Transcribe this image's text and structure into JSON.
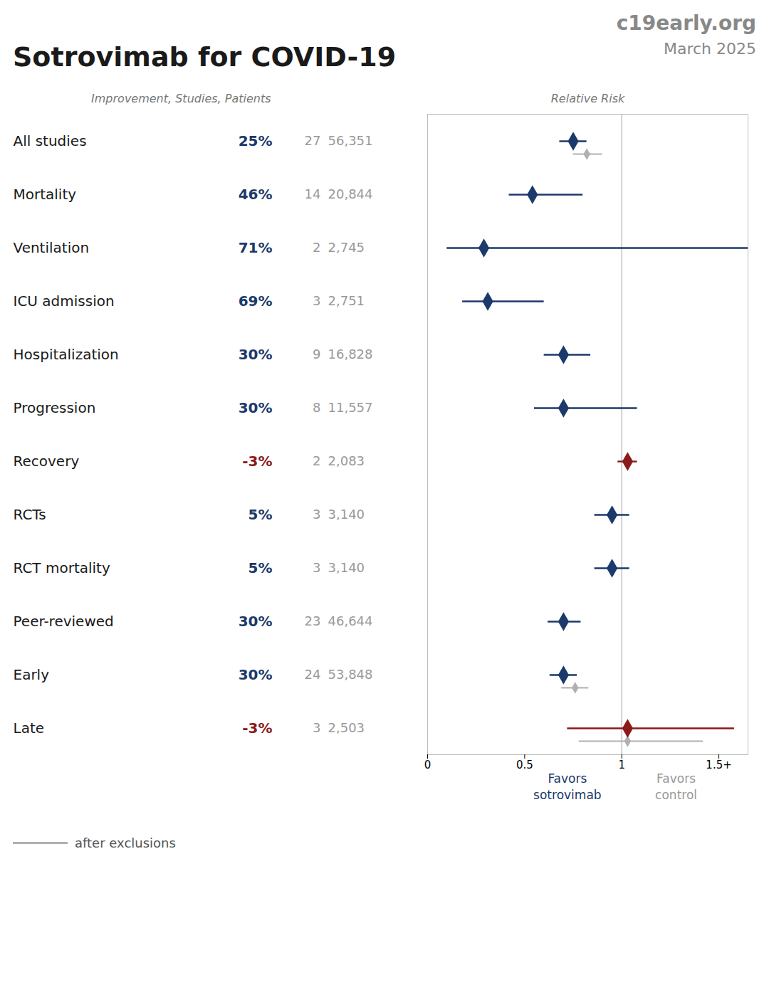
{
  "chart_data": {
    "type": "forest",
    "title": "Sotrovimab for COVID-19",
    "subtitle": [
      "c19early.org",
      "March 2025"
    ],
    "column_headers": [
      "Improvement, Studies, Patients",
      "Relative Risk"
    ],
    "xlim": [
      0.0,
      1.65
    ],
    "xticks": [
      0,
      0.5,
      1,
      {
        "value": 1.5,
        "label": "1.5+"
      }
    ],
    "reference_line": 1.0,
    "rows": [
      {
        "label": "All studies",
        "improvement": "25%",
        "studies": "27",
        "patients": "56,351",
        "point": 0.75,
        "ci_low": 0.68,
        "ci_high": 0.82,
        "color": "#1b3a6b",
        "excl_point": 0.82,
        "excl_ci_low": 0.75,
        "excl_ci_high": 0.9
      },
      {
        "label": "Mortality",
        "improvement": "46%",
        "studies": "14",
        "patients": "20,844",
        "point": 0.54,
        "ci_low": 0.42,
        "ci_high": 0.8,
        "color": "#1b3a6b"
      },
      {
        "label": "Ventilation",
        "improvement": "71%",
        "studies": "2",
        "patients": "2,745",
        "point": 0.29,
        "ci_low": 0.1,
        "ci_high": 1.65,
        "color": "#1b3a6b"
      },
      {
        "label": "ICU admission",
        "improvement": "69%",
        "studies": "3",
        "patients": "2,751",
        "point": 0.31,
        "ci_low": 0.18,
        "ci_high": 0.6,
        "color": "#1b3a6b"
      },
      {
        "label": "Hospitalization",
        "improvement": "30%",
        "studies": "9",
        "patients": "16,828",
        "point": 0.7,
        "ci_low": 0.6,
        "ci_high": 0.84,
        "color": "#1b3a6b"
      },
      {
        "label": "Progression",
        "improvement": "30%",
        "studies": "8",
        "patients": "11,557",
        "point": 0.7,
        "ci_low": 0.55,
        "ci_high": 1.08,
        "color": "#1b3a6b"
      },
      {
        "label": "Recovery",
        "improvement": "-3%",
        "studies": "2",
        "patients": "2,083",
        "point": 1.03,
        "ci_low": 0.98,
        "ci_high": 1.08,
        "color": "#8b1a1a"
      },
      {
        "label": "RCTs",
        "improvement": "5%",
        "studies": "3",
        "patients": "3,140",
        "point": 0.95,
        "ci_low": 0.86,
        "ci_high": 1.04,
        "color": "#1b3a6b"
      },
      {
        "label": "RCT mortality",
        "improvement": "5%",
        "studies": "3",
        "patients": "3,140",
        "point": 0.95,
        "ci_low": 0.86,
        "ci_high": 1.04,
        "color": "#1b3a6b"
      },
      {
        "label": "Peer-reviewed",
        "improvement": "30%",
        "studies": "23",
        "patients": "46,644",
        "point": 0.7,
        "ci_low": 0.62,
        "ci_high": 0.79,
        "color": "#1b3a6b"
      },
      {
        "label": "Early",
        "improvement": "30%",
        "studies": "24",
        "patients": "53,848",
        "point": 0.7,
        "ci_low": 0.63,
        "ci_high": 0.77,
        "color": "#1b3a6b",
        "excl_point": 0.76,
        "excl_ci_low": 0.69,
        "excl_ci_high": 0.83
      },
      {
        "label": "Late",
        "improvement": "-3%",
        "studies": "3",
        "patients": "2,503",
        "point": 1.03,
        "ci_low": 0.72,
        "ci_high": 1.58,
        "color": "#8b1a1a",
        "excl_point": 1.03,
        "excl_ci_low": 0.78,
        "excl_ci_high": 1.42
      }
    ],
    "exclusion": {
      "name": "after exclusions",
      "color": "#b0b0b0"
    },
    "annotations": [
      {
        "text": "Favors\nsotrovimab",
        "x": 0.72,
        "color": "#1b3a6b"
      },
      {
        "text": "Favors\ncontrol",
        "x": 1.28,
        "color": "#999999"
      }
    ]
  }
}
